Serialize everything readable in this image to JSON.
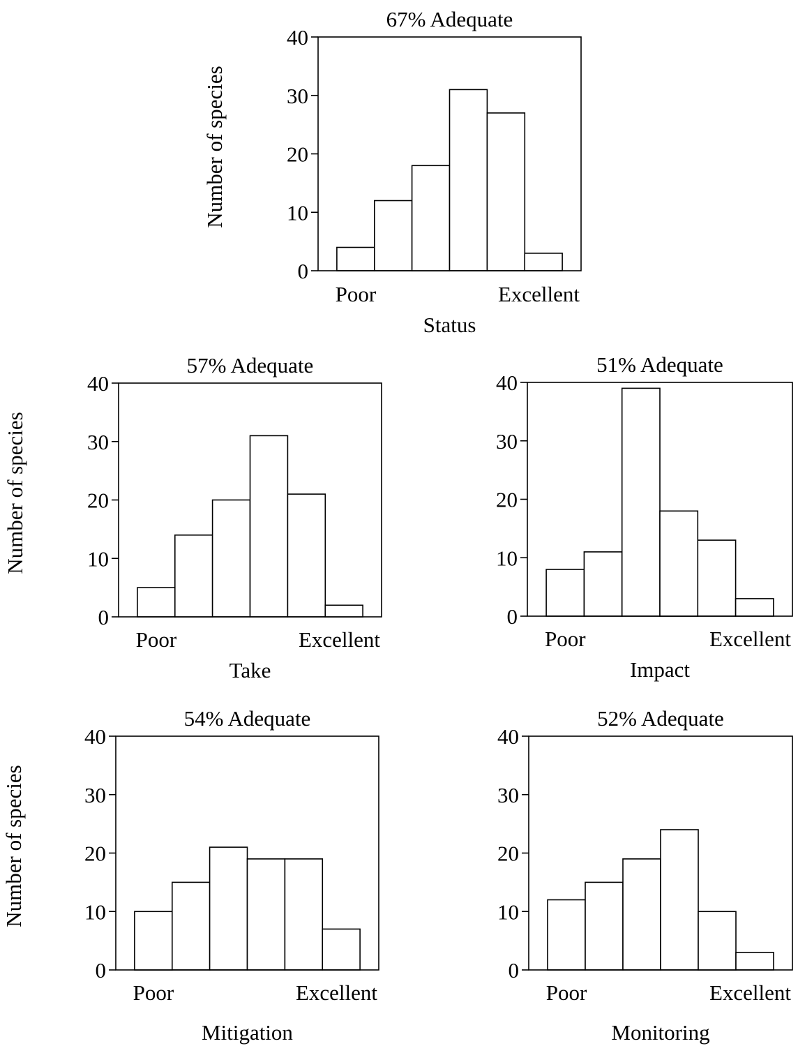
{
  "chart_data": [
    {
      "type": "bar",
      "title": "67% Adequate",
      "xlabel": "Status",
      "ylabel": "Number of species",
      "x_tick_labels": [
        "Poor",
        "Excellent"
      ],
      "y_ticks": [
        0,
        10,
        20,
        30,
        40
      ],
      "ylim": [
        0,
        40
      ],
      "categories": [
        "1",
        "2",
        "3",
        "4",
        "5",
        "6"
      ],
      "values": [
        4,
        12,
        18,
        31,
        27,
        3
      ],
      "grid": false
    },
    {
      "type": "bar",
      "title": "57% Adequate",
      "xlabel": "Take",
      "ylabel": "Number of species",
      "x_tick_labels": [
        "Poor",
        "Excellent"
      ],
      "y_ticks": [
        0,
        10,
        20,
        30,
        40
      ],
      "ylim": [
        0,
        40
      ],
      "categories": [
        "1",
        "2",
        "3",
        "4",
        "5",
        "6"
      ],
      "values": [
        5,
        14,
        20,
        31,
        21,
        2
      ],
      "grid": false
    },
    {
      "type": "bar",
      "title": "51% Adequate",
      "xlabel": "Impact",
      "ylabel": "",
      "x_tick_labels": [
        "Poor",
        "Excellent"
      ],
      "y_ticks": [
        0,
        10,
        20,
        30,
        40
      ],
      "ylim": [
        0,
        40
      ],
      "categories": [
        "1",
        "2",
        "3",
        "4",
        "5",
        "6"
      ],
      "values": [
        8,
        11,
        39,
        18,
        13,
        3
      ],
      "grid": false
    },
    {
      "type": "bar",
      "title": "54% Adequate",
      "xlabel": "Mitigation",
      "ylabel": "Number of species",
      "x_tick_labels": [
        "Poor",
        "Excellent"
      ],
      "y_ticks": [
        0,
        10,
        20,
        30,
        40
      ],
      "ylim": [
        0,
        40
      ],
      "categories": [
        "1",
        "2",
        "3",
        "4",
        "5",
        "6"
      ],
      "values": [
        10,
        15,
        21,
        19,
        19,
        7
      ],
      "grid": false
    },
    {
      "type": "bar",
      "title": "52% Adequate",
      "xlabel": "Monitoring",
      "ylabel": "",
      "x_tick_labels": [
        "Poor",
        "Excellent"
      ],
      "y_ticks": [
        0,
        10,
        20,
        30,
        40
      ],
      "ylim": [
        0,
        40
      ],
      "categories": [
        "1",
        "2",
        "3",
        "4",
        "5",
        "6"
      ],
      "values": [
        12,
        15,
        19,
        24,
        10,
        3
      ],
      "grid": false
    }
  ]
}
